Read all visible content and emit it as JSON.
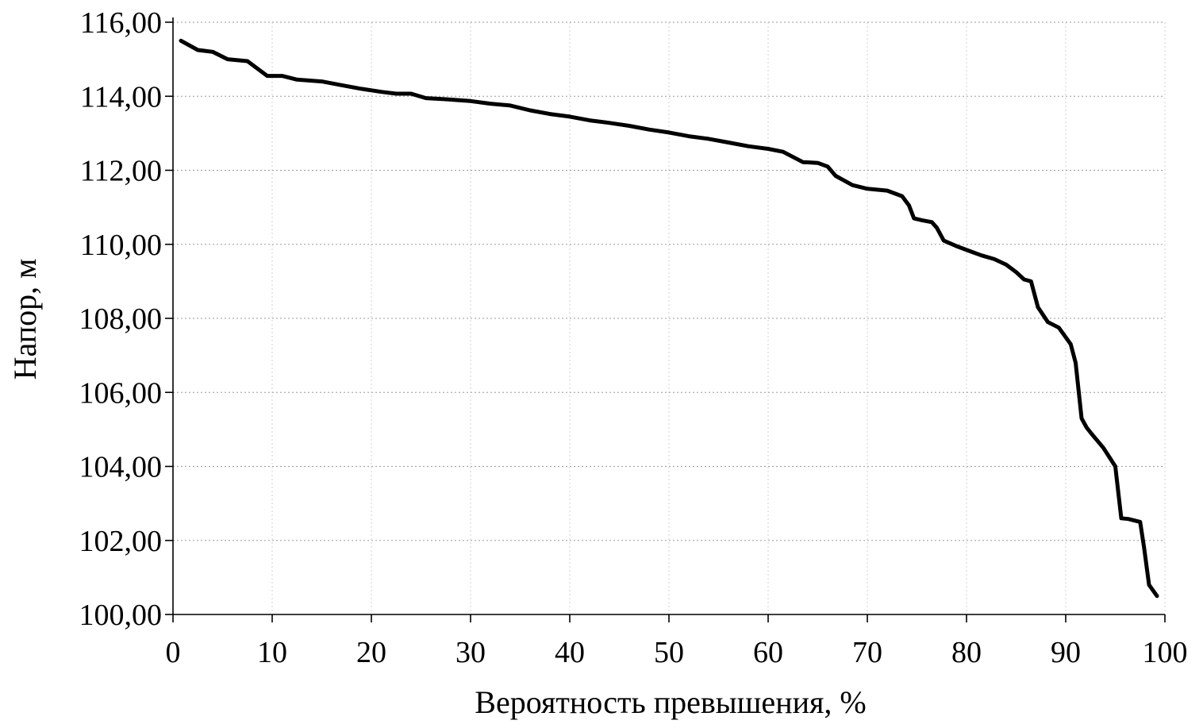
{
  "chart_data": {
    "type": "line",
    "title": "",
    "xlabel": "Вероятность превышения, %",
    "ylabel": "Напор, м",
    "xlim": [
      0,
      100
    ],
    "ylim": [
      100,
      116
    ],
    "x_ticks": [
      0,
      10,
      20,
      30,
      40,
      50,
      60,
      70,
      80,
      90,
      100
    ],
    "x_tick_labels": [
      "0",
      "10",
      "20",
      "30",
      "40",
      "50",
      "60",
      "70",
      "80",
      "90",
      "100"
    ],
    "y_ticks": [
      100,
      102,
      104,
      106,
      108,
      110,
      112,
      114,
      116
    ],
    "y_tick_labels": [
      "100,00",
      "102,00",
      "104,00",
      "106,00",
      "108,00",
      "110,00",
      "112,00",
      "114,00",
      "116,00"
    ],
    "grid": true,
    "legend": "none",
    "line_color": "#000000",
    "series": [
      {
        "x": [
          0.8,
          2.5,
          4.0,
          5.5,
          7.5,
          9.5,
          11.0,
          12.5,
          15.0,
          17.0,
          19.0,
          21.0,
          22.5,
          24.0,
          25.5,
          27.5,
          30.0,
          32.0,
          34.0,
          36.0,
          38.0,
          40.0,
          42.0,
          44.0,
          46.0,
          48.0,
          50.0,
          52.0,
          54.0,
          56.0,
          58.0,
          60.0,
          61.5,
          63.5,
          65.0,
          66.0,
          66.8,
          68.5,
          70.0,
          72.0,
          73.5,
          74.2,
          74.7,
          75.5,
          76.5,
          77.0,
          77.7,
          79.0,
          80.5,
          81.5,
          82.8,
          84.0,
          85.0,
          85.8,
          86.5,
          87.2,
          88.2,
          89.3,
          90.5,
          91.0,
          91.6,
          92.1,
          92.7,
          93.8,
          95.0,
          95.6,
          96.3,
          97.5,
          97.9,
          98.4,
          99.2
        ],
        "y": [
          115.5,
          115.25,
          115.2,
          115.0,
          114.95,
          114.55,
          114.55,
          114.45,
          114.4,
          114.3,
          114.2,
          114.12,
          114.07,
          114.07,
          113.95,
          113.92,
          113.87,
          113.8,
          113.75,
          113.62,
          113.52,
          113.45,
          113.35,
          113.28,
          113.2,
          113.1,
          113.02,
          112.92,
          112.85,
          112.75,
          112.65,
          112.58,
          112.5,
          112.22,
          112.2,
          112.1,
          111.85,
          111.6,
          111.5,
          111.45,
          111.3,
          111.05,
          110.7,
          110.65,
          110.6,
          110.45,
          110.1,
          109.95,
          109.8,
          109.7,
          109.6,
          109.45,
          109.25,
          109.05,
          109.0,
          108.3,
          107.9,
          107.75,
          107.3,
          106.8,
          105.3,
          105.05,
          104.85,
          104.5,
          104.0,
          102.6,
          102.58,
          102.5,
          101.8,
          100.8,
          100.5
        ]
      }
    ]
  }
}
